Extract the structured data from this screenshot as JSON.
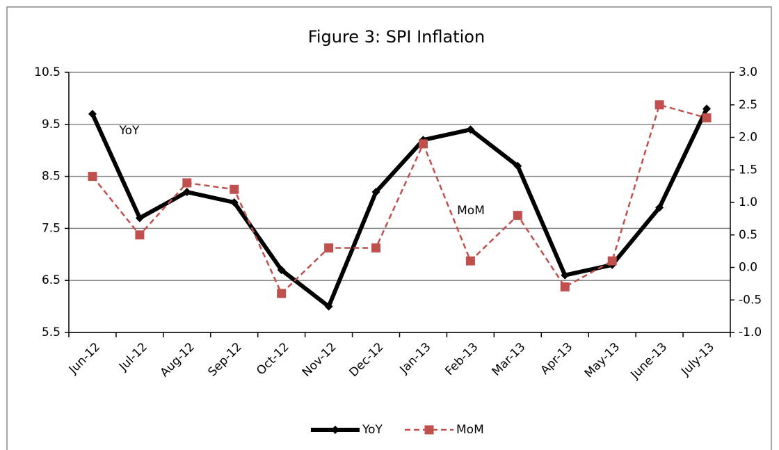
{
  "chart_data": {
    "type": "line",
    "title": "Figure 3: SPI Inflation",
    "categories": [
      "Jun-12",
      "Jul-12",
      "Aug-12",
      "Sep-12",
      "Oct-12",
      "Nov-12",
      "Dec-12",
      "Jan-13",
      "Feb-13",
      "Mar-13",
      "Apr-13",
      "May-13",
      "June-13",
      "July-13"
    ],
    "series": [
      {
        "name": "YoY",
        "color": "#000000",
        "values": [
          9.7,
          7.7,
          8.2,
          8.0,
          6.7,
          6.0,
          8.2,
          9.2,
          9.4,
          8.7,
          6.6,
          6.8,
          7.9,
          9.8
        ]
      },
      {
        "name": "MoM",
        "color": "#c0504d",
        "axis": "y2",
        "values": [
          1.4,
          0.5,
          1.3,
          1.2,
          -0.4,
          0.3,
          0.3,
          1.9,
          0.1,
          0.8,
          -0.3,
          0.1,
          2.5,
          2.3
        ]
      }
    ],
    "annotations": [
      "YoY",
      "MoM"
    ],
    "ylim": [
      5.5,
      10.5
    ],
    "yticks": [
      5.5,
      6.5,
      7.5,
      8.5,
      9.5,
      10.5
    ],
    "y2lim": [
      -1.0,
      3.0
    ],
    "y2ticks": [
      {
        "value": -1.0,
        "label": "-1.0"
      },
      -0.5,
      {
        "value": 0.0,
        "label": "0.0"
      },
      0.5,
      {
        "value": 1.0,
        "label": "1.0"
      },
      1.5,
      {
        "value": 2.0,
        "label": "2.0"
      },
      2.5,
      {
        "value": 3.0,
        "label": "3.0"
      }
    ],
    "grid": true,
    "legend": "bottom"
  }
}
